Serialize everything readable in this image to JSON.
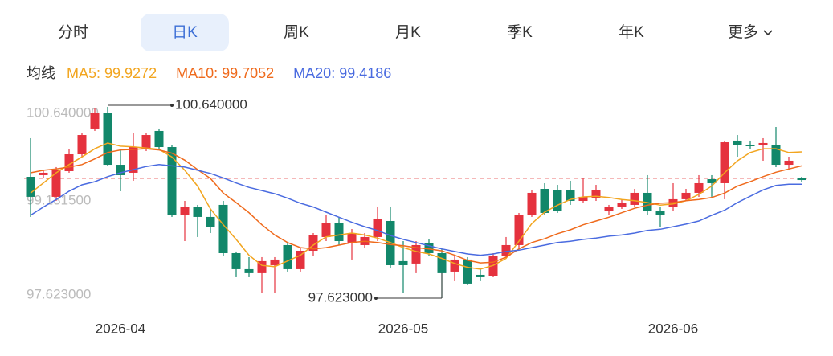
{
  "tabs": {
    "items": [
      "分时",
      "日K",
      "周K",
      "月K",
      "季K",
      "年K",
      "更多"
    ],
    "active": 1
  },
  "chart_data": {
    "type": "candlestick",
    "legend_title": "均线",
    "categories": [
      null,
      null,
      null,
      null,
      null,
      null,
      null,
      "2026-04",
      null,
      null,
      null,
      null,
      null,
      null,
      null,
      null,
      null,
      null,
      null,
      null,
      null,
      null,
      null,
      null,
      null,
      null,
      null,
      null,
      null,
      "2026-05",
      null,
      null,
      null,
      null,
      null,
      null,
      null,
      null,
      null,
      null,
      null,
      null,
      null,
      null,
      null,
      null,
      null,
      null,
      null,
      null,
      "2026-06",
      null,
      null,
      null,
      null,
      null,
      null,
      null,
      null,
      null,
      null
    ],
    "open": [
      99.537,
      99.563,
      99.221,
      99.626,
      99.892,
      100.298,
      100.551,
      99.727,
      99.601,
      99.981,
      100.26,
      100.006,
      98.929,
      99.056,
      98.904,
      99.094,
      98.333,
      98.08,
      98.017,
      98.143,
      98.46,
      98.08,
      98.371,
      98.587,
      98.802,
      98.498,
      98.46,
      98.587,
      98.84,
      98.207,
      98.169,
      98.485,
      98.333,
      98.042,
      98.232,
      97.991,
      97.978,
      98.295,
      98.46,
      98.929,
      99.347,
      99.322,
      99.322,
      99.157,
      99.195,
      98.992,
      99.056,
      99.094,
      99.284,
      98.992,
      99.056,
      99.183,
      99.284,
      99.499,
      99.436,
      100.108,
      100.044,
      100.044,
      100.044,
      99.727,
      99.512
    ],
    "high": [
      100.146,
      99.639,
      99.69,
      99.981,
      100.234,
      100.615,
      100.64,
      99.981,
      100.234,
      100.234,
      100.298,
      100.044,
      99.157,
      99.094,
      99.03,
      99.157,
      98.359,
      98.27,
      98.27,
      98.27,
      98.485,
      98.422,
      98.65,
      98.929,
      98.904,
      98.713,
      98.65,
      99.056,
      99.056,
      98.523,
      98.523,
      98.549,
      98.397,
      98.295,
      98.27,
      98.08,
      98.333,
      98.587,
      98.967,
      99.322,
      99.436,
      99.41,
      99.474,
      99.512,
      99.41,
      99.094,
      99.183,
      99.347,
      99.563,
      99.056,
      99.436,
      99.347,
      99.563,
      99.563,
      100.108,
      100.196,
      100.108,
      100.146,
      100.323,
      99.854,
      99.537
    ],
    "low": [
      98.904,
      99.512,
      99.157,
      99.601,
      99.854,
      100.26,
      99.702,
      99.309,
      99.474,
      99.943,
      99.981,
      98.904,
      98.523,
      98.587,
      98.65,
      98.295,
      97.953,
      97.953,
      97.7,
      97.7,
      98.042,
      98.042,
      98.295,
      98.523,
      98.46,
      98.232,
      98.422,
      98.523,
      98.105,
      97.7,
      98.017,
      98.295,
      97.623,
      97.89,
      97.826,
      97.89,
      97.953,
      98.27,
      98.422,
      98.904,
      98.929,
      98.967,
      99.094,
      99.132,
      99.157,
      98.929,
      99.03,
      99.056,
      98.929,
      98.751,
      99.005,
      99.157,
      99.221,
      99.221,
      99.183,
      99.854,
      99.981,
      99.791,
      99.689,
      99.639,
      99.461
    ],
    "close": [
      99.221,
      99.601,
      99.639,
      99.892,
      100.196,
      100.551,
      99.727,
      99.563,
      100.006,
      100.196,
      100.006,
      98.929,
      99.056,
      98.904,
      98.739,
      98.333,
      98.08,
      98.017,
      98.207,
      98.232,
      98.08,
      98.371,
      98.612,
      98.802,
      98.523,
      98.65,
      98.587,
      98.878,
      98.143,
      98.143,
      98.46,
      98.333,
      98.017,
      98.232,
      97.852,
      97.953,
      98.295,
      98.46,
      98.929,
      99.284,
      98.967,
      98.992,
      99.157,
      99.221,
      99.322,
      99.056,
      99.119,
      99.284,
      98.992,
      98.929,
      99.183,
      99.284,
      99.436,
      99.436,
      100.082,
      100.044,
      100.019,
      100.07,
      99.727,
      99.791,
      99.486
    ],
    "up_color": "#e5323e",
    "down_color": "#12876a",
    "series": [
      {
        "name": "MA5: 99.9272",
        "color": "#f2a51f",
        "values": [
          99.28,
          99.44,
          99.6,
          99.73,
          99.85,
          99.98,
          100.07,
          100.02,
          100.01,
          99.99,
          99.97,
          99.85,
          99.64,
          99.39,
          99.03,
          98.78,
          98.55,
          98.3,
          98.14,
          98.12,
          98.21,
          98.3,
          98.46,
          98.59,
          98.62,
          98.65,
          98.62,
          98.57,
          98.5,
          98.42,
          98.36,
          98.32,
          98.25,
          98.17,
          98.11,
          98.08,
          98.14,
          98.25,
          98.52,
          98.8,
          98.98,
          99.09,
          99.18,
          99.22,
          99.23,
          99.21,
          99.18,
          99.16,
          99.13,
          99.09,
          99.11,
          99.16,
          99.26,
          99.39,
          99.6,
          99.79,
          99.92,
          99.98,
          99.98,
          99.92,
          99.93
        ]
      },
      {
        "name": "MA10: 99.7052",
        "color": "#ef6a1c",
        "values": [
          99.6,
          99.64,
          99.66,
          99.69,
          99.73,
          99.82,
          99.92,
          99.96,
          99.97,
          99.98,
          99.96,
          99.91,
          99.8,
          99.65,
          99.51,
          99.28,
          99.13,
          98.97,
          98.78,
          98.62,
          98.5,
          98.42,
          98.4,
          98.42,
          98.46,
          98.5,
          98.52,
          98.5,
          98.47,
          98.45,
          98.42,
          98.4,
          98.37,
          98.3,
          98.22,
          98.18,
          98.19,
          98.27,
          98.4,
          98.5,
          98.56,
          98.64,
          98.7,
          98.78,
          98.84,
          98.9,
          98.97,
          99.04,
          99.09,
          99.12,
          99.13,
          99.16,
          99.18,
          99.21,
          99.28,
          99.39,
          99.46,
          99.54,
          99.61,
          99.66,
          99.71
        ]
      },
      {
        "name": "MA20: 99.4186",
        "color": "#4a6be0",
        "values": [
          98.93,
          99.06,
          99.18,
          99.31,
          99.41,
          99.46,
          99.54,
          99.6,
          99.65,
          99.7,
          99.73,
          99.71,
          99.69,
          99.64,
          99.59,
          99.52,
          99.44,
          99.37,
          99.32,
          99.27,
          99.2,
          99.12,
          99.06,
          98.98,
          98.9,
          98.82,
          98.75,
          98.69,
          98.61,
          98.55,
          98.5,
          98.45,
          98.4,
          98.36,
          98.32,
          98.3,
          98.32,
          98.36,
          98.38,
          98.42,
          98.46,
          98.5,
          98.52,
          98.55,
          98.57,
          98.6,
          98.62,
          98.65,
          98.69,
          98.71,
          98.75,
          98.79,
          98.84,
          98.93,
          99.01,
          99.13,
          99.23,
          99.33,
          99.4,
          99.42,
          99.42
        ]
      }
    ],
    "ref_line": 99.51,
    "ylim": [
      97.623,
      100.64
    ],
    "yticks": [
      {
        "value": 100.64,
        "label": "100.640000"
      },
      {
        "value": 99.1315,
        "label": "99.131500"
      },
      {
        "value": 97.623,
        "label": "97.623000"
      }
    ],
    "grid": false,
    "annotations": [
      {
        "value": 100.64,
        "label": "100.640000",
        "field": "high"
      },
      {
        "value": 97.623,
        "label": "97.623000",
        "field": "low"
      }
    ]
  }
}
